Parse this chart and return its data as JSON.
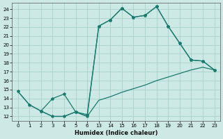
{
  "xlabel": "Humidex (Indice chaleur)",
  "bg_color": "#cce9e6",
  "grid_color": "#add4d0",
  "line_color": "#1a7a6e",
  "xtick_labels": [
    "0",
    "1",
    "2",
    "3",
    "4",
    "5",
    "6",
    "13",
    "14",
    "15",
    "16",
    "17",
    "18",
    "19",
    "20",
    "21",
    "22",
    "23"
  ],
  "yticks": [
    12,
    13,
    14,
    15,
    16,
    17,
    18,
    19,
    20,
    21,
    22,
    23,
    24
  ],
  "ylim": [
    11.5,
    24.7
  ],
  "line1_idx": [
    0,
    1,
    2,
    3,
    4,
    5,
    6,
    7,
    8,
    9,
    10,
    11,
    12,
    13,
    14,
    15,
    16,
    17
  ],
  "line1_y": [
    14.8,
    13.3,
    12.6,
    12.0,
    12.0,
    12.5,
    12.0,
    22.1,
    22.8,
    24.1,
    23.1,
    23.3,
    24.3,
    22.1,
    20.2,
    18.3,
    18.2,
    17.2
  ],
  "line2_idx": [
    0,
    1,
    2,
    3,
    4,
    5,
    6,
    7,
    8,
    9,
    10,
    11,
    12,
    13,
    14,
    15,
    16,
    17
  ],
  "line2_y": [
    14.8,
    13.3,
    12.6,
    12.0,
    12.0,
    12.5,
    12.0,
    13.8,
    14.2,
    14.7,
    15.1,
    15.5,
    16.0,
    16.4,
    16.8,
    17.2,
    17.5,
    17.2
  ],
  "line3_idx": [
    2,
    3,
    4,
    5,
    6,
    7,
    8,
    9,
    10,
    11,
    12,
    13,
    14,
    15,
    16,
    17
  ],
  "line3_y": [
    12.6,
    14.0,
    14.5,
    12.5,
    12.2,
    22.1,
    22.8,
    24.1,
    23.1,
    23.3,
    24.3,
    22.1,
    20.2,
    18.3,
    18.2,
    17.2
  ]
}
